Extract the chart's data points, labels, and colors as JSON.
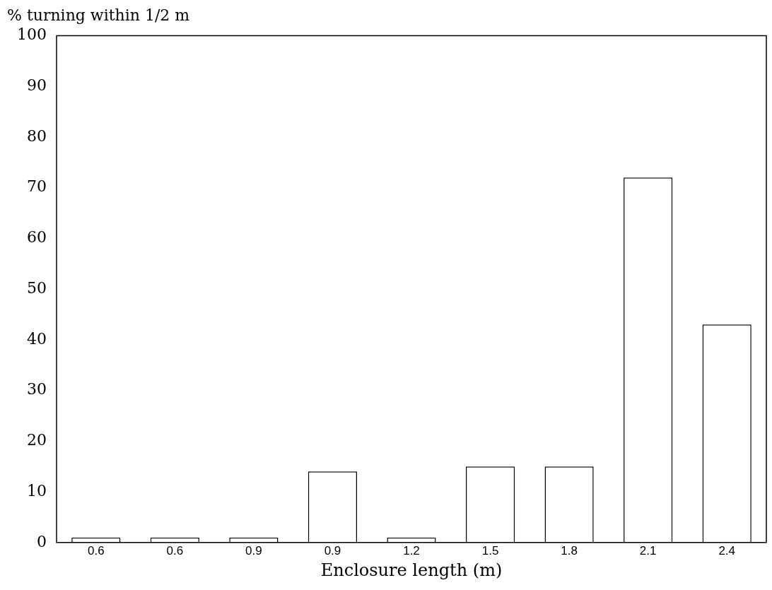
{
  "chart_data": {
    "type": "bar",
    "ylabel": "% turning within 1/2 m",
    "xlabel": "Enclosure length (m)",
    "categories": [
      "0.6",
      "0.6",
      "0.9",
      "0.9",
      "1.2",
      "1.5",
      "1.8",
      "2.1",
      "2.4"
    ],
    "values": [
      1,
      1,
      1,
      14,
      1,
      15,
      15,
      72,
      43
    ],
    "color": "#ffffff",
    "ylim": [
      0,
      100
    ],
    "yticks": [
      0,
      10,
      20,
      30,
      40,
      50,
      60,
      70,
      80,
      90,
      100
    ],
    "grid": false,
    "legend": false
  }
}
